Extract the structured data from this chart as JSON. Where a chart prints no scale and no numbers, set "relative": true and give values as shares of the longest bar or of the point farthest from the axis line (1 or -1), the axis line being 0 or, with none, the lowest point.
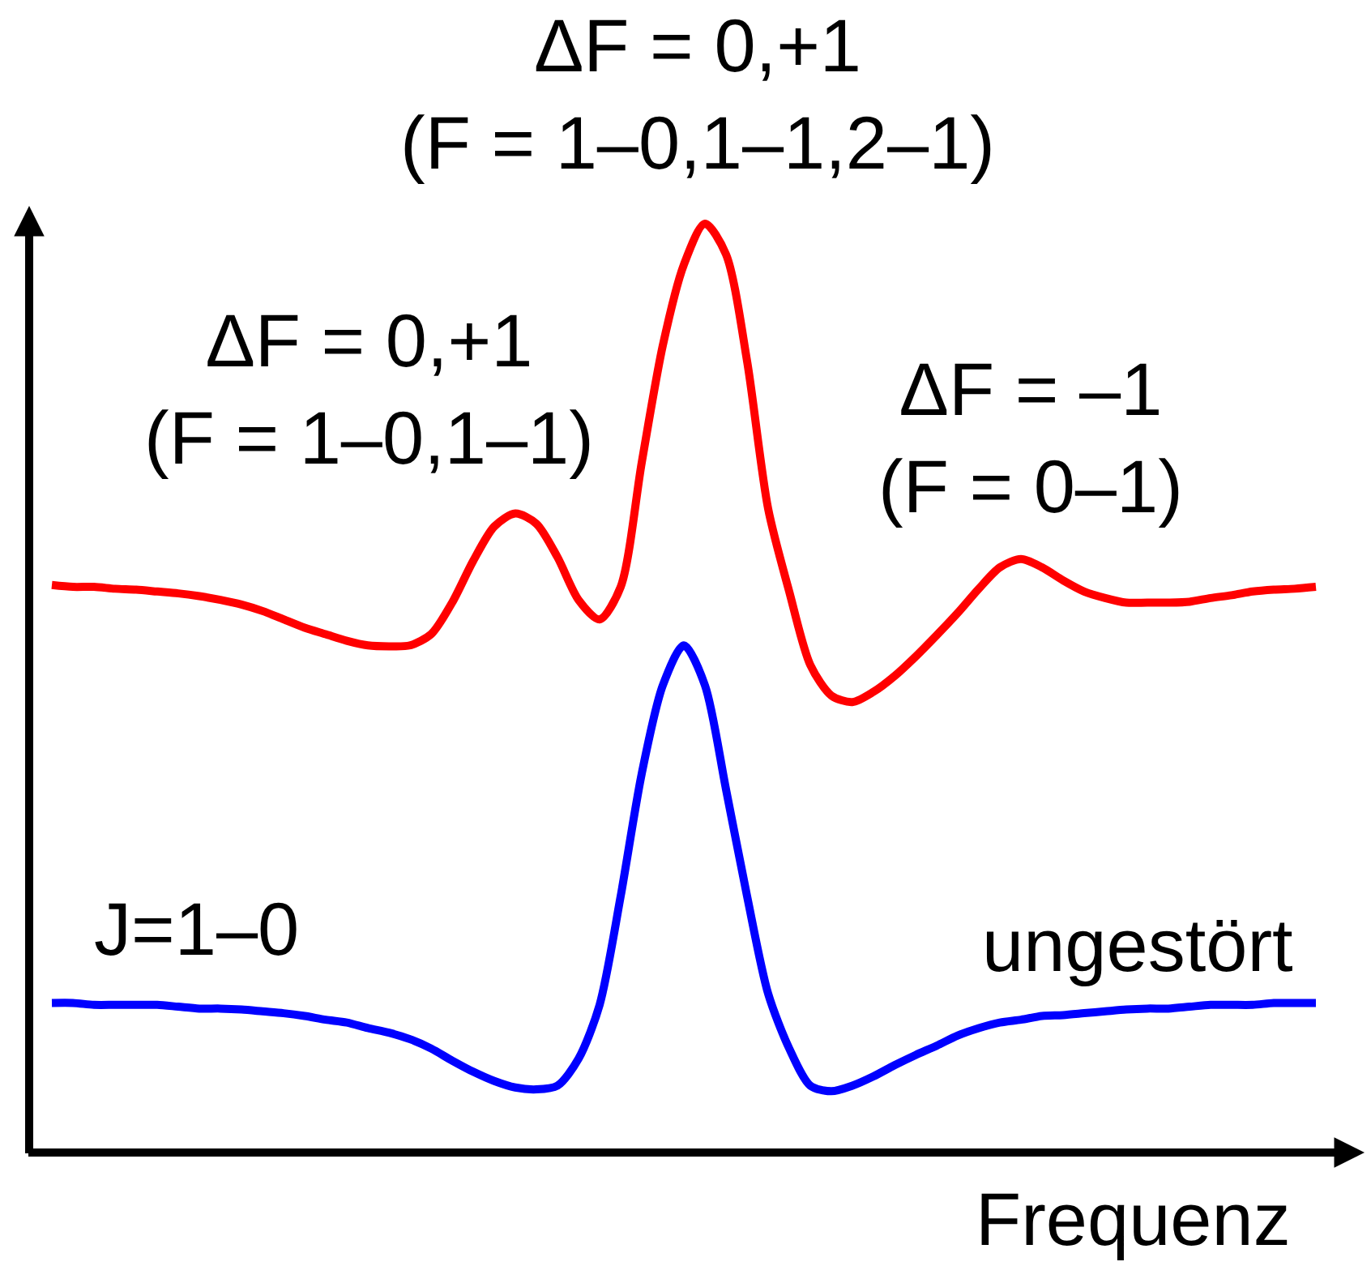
{
  "chart_data": {
    "type": "line",
    "relative": true,
    "xlabel": "Frequenz",
    "categories": [
      null,
      null,
      null,
      null,
      null,
      null,
      null,
      null,
      null,
      null,
      null,
      null,
      null,
      null,
      null,
      null,
      null,
      null,
      null,
      null,
      null,
      null,
      null,
      null,
      null,
      null,
      null,
      null,
      null,
      null,
      null,
      null,
      null,
      null,
      null,
      null,
      null,
      null,
      null,
      null,
      null,
      null,
      null,
      null,
      null,
      null,
      null,
      null,
      null,
      null,
      null,
      null,
      null,
      null,
      null,
      null,
      null,
      null,
      null,
      null,
      null
    ],
    "series": [
      {
        "color": "#ff0000",
        "values": [
          0.611,
          0.609,
          0.609,
          0.607,
          0.606,
          0.604,
          0.602,
          0.599,
          0.595,
          0.59,
          0.583,
          0.574,
          0.565,
          0.558,
          0.551,
          0.546,
          0.545,
          0.546,
          0.558,
          0.592,
          0.637,
          0.674,
          0.688,
          0.677,
          0.641,
          0.595,
          0.574,
          0.609,
          0.743,
          0.869,
          0.956,
          1,
          0.967,
          0.852,
          0.693,
          0.604,
          0.525,
          0.492,
          0.485,
          0.496,
          0.513,
          0.534,
          0.557,
          0.581,
          0.607,
          0.63,
          0.639,
          0.63,
          0.616,
          0.604,
          0.597,
          0.592,
          0.592,
          0.592,
          0.593,
          0.597,
          0.6,
          0.604,
          0.606,
          0.607,
          0.609
        ]
      },
      {
        "name": "ungestört",
        "color": "#0000ff",
        "values": [
          0.161,
          0.161,
          0.159,
          0.159,
          0.159,
          0.159,
          0.157,
          0.155,
          0.155,
          0.154,
          0.152,
          0.15,
          0.147,
          0.143,
          0.14,
          0.134,
          0.129,
          0.122,
          0.112,
          0.099,
          0.087,
          0.077,
          0.07,
          0.068,
          0.072,
          0.101,
          0.159,
          0.276,
          0.408,
          0.503,
          0.546,
          0.503,
          0.391,
          0.276,
          0.171,
          0.112,
          0.072,
          0.066,
          0.072,
          0.082,
          0.094,
          0.105,
          0.115,
          0.126,
          0.134,
          0.14,
          0.143,
          0.147,
          0.148,
          0.15,
          0.152,
          0.154,
          0.155,
          0.155,
          0.157,
          0.159,
          0.159,
          0.159,
          0.161,
          0.161,
          0.161
        ]
      }
    ],
    "annotations": [
      "ΔF = 0,+1\n(F = 1–0,1–1,2–1)",
      "ΔF = 0,+1\n(F = 1–0,1–1)",
      "ΔF = –1\n(F = 0–1)",
      "J=1–0"
    ]
  }
}
